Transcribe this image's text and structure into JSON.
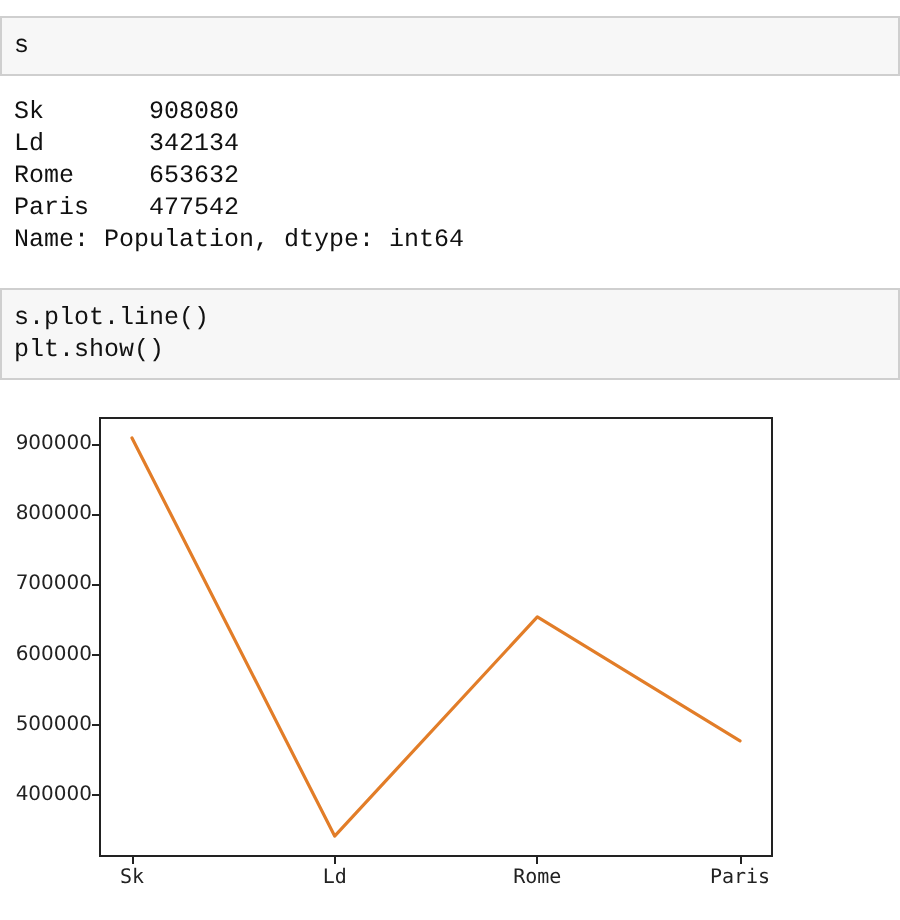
{
  "chart_data": {
    "type": "line",
    "annotations": [
      "s",
      "Sk       908080\nLd       342134\nRome     653632\nParis    477542\nName: Population, dtype: int64",
      "s.plot.line()\nplt.show()"
    ],
    "categories": [
      "Sk",
      "Ld",
      "Rome",
      "Paris"
    ],
    "series": [
      {
        "color": "#e27d28",
        "values": [
          908080,
          342134,
          653632,
          477542
        ]
      }
    ],
    "ylim": [
      313800,
      936400
    ],
    "yticks": [
      400000,
      500000,
      600000,
      700000,
      800000,
      900000
    ],
    "grid": false,
    "marker": "none",
    "line_style": "solid"
  }
}
